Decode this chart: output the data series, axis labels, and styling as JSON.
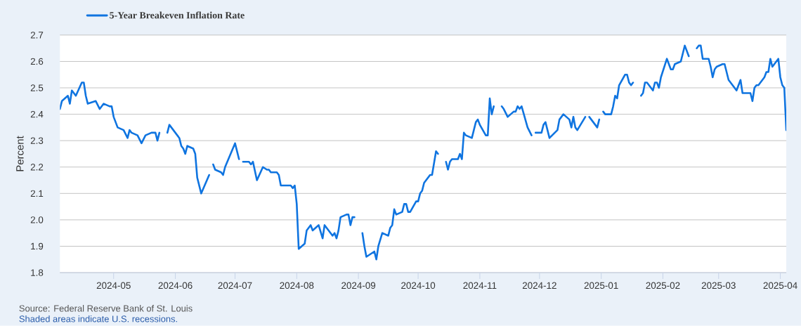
{
  "chart_data": {
    "type": "line",
    "ylabel": "Percent",
    "annotations": [
      "Source: Federal Reserve Bank of St. Louis",
      "Shaded areas indicate U.S. recessions."
    ],
    "x": [
      "2024-04-04",
      "2024-04-05",
      "2024-04-08",
      "2024-04-09",
      "2024-04-10",
      "2024-04-12",
      "2024-04-15",
      "2024-04-16",
      "2024-04-17",
      "2024-04-18",
      "2024-04-22",
      "2024-04-24",
      "2024-04-26",
      "2024-04-29",
      "2024-04-30",
      "2024-05-01",
      "2024-05-03",
      "2024-05-06",
      "2024-05-08",
      "2024-05-09",
      "2024-05-10",
      "2024-05-13",
      "2024-05-15",
      "2024-05-17",
      "2024-05-20",
      "2024-05-22",
      "2024-05-23",
      "2024-05-24",
      "2024-05-27",
      "2024-05-28",
      "2024-05-29",
      "2024-06-03",
      "2024-06-04",
      "2024-06-05",
      "2024-06-06",
      "2024-06-07",
      "2024-06-10",
      "2024-06-11",
      "2024-06-12",
      "2024-06-14",
      "2024-06-18",
      "2024-06-19",
      "2024-06-20",
      "2024-06-21",
      "2024-06-24",
      "2024-06-25",
      "2024-06-26",
      "2024-07-01",
      "2024-07-03",
      "2024-07-04",
      "2024-07-05",
      "2024-07-08",
      "2024-07-09",
      "2024-07-10",
      "2024-07-12",
      "2024-07-15",
      "2024-07-17",
      "2024-07-18",
      "2024-07-19",
      "2024-07-22",
      "2024-07-23",
      "2024-07-24",
      "2024-07-29",
      "2024-07-30",
      "2024-07-31",
      "2024-08-01",
      "2024-08-02",
      "2024-08-05",
      "2024-08-06",
      "2024-08-08",
      "2024-08-09",
      "2024-08-12",
      "2024-08-14",
      "2024-08-15",
      "2024-08-16",
      "2024-08-19",
      "2024-08-20",
      "2024-08-21",
      "2024-08-22",
      "2024-08-23",
      "2024-08-26",
      "2024-08-27",
      "2024-08-28",
      "2024-08-29",
      "2024-08-30",
      "2024-09-02",
      "2024-09-03",
      "2024-09-04",
      "2024-09-05",
      "2024-09-09",
      "2024-09-10",
      "2024-09-11",
      "2024-09-13",
      "2024-09-16",
      "2024-09-17",
      "2024-09-18",
      "2024-09-19",
      "2024-09-20",
      "2024-09-23",
      "2024-09-24",
      "2024-09-25",
      "2024-09-26",
      "2024-09-27",
      "2024-09-30",
      "2024-10-01",
      "2024-10-02",
      "2024-10-03",
      "2024-10-04",
      "2024-10-07",
      "2024-10-08",
      "2024-10-10",
      "2024-10-11",
      "2024-10-14",
      "2024-10-15",
      "2024-10-16",
      "2024-10-17",
      "2024-10-18",
      "2024-10-21",
      "2024-10-22",
      "2024-10-23",
      "2024-10-24",
      "2024-10-25",
      "2024-10-28",
      "2024-10-29",
      "2024-10-30",
      "2024-10-31",
      "2024-11-01",
      "2024-11-04",
      "2024-11-05",
      "2024-11-06",
      "2024-11-07",
      "2024-11-08",
      "2024-11-11",
      "2024-11-12",
      "2024-11-13",
      "2024-11-15",
      "2024-11-18",
      "2024-11-19",
      "2024-11-20",
      "2024-11-21",
      "2024-11-22",
      "2024-11-25",
      "2024-11-27",
      "2024-11-28",
      "2024-11-29",
      "2024-12-02",
      "2024-12-03",
      "2024-12-04",
      "2024-12-06",
      "2024-12-10",
      "2024-12-11",
      "2024-12-13",
      "2024-12-16",
      "2024-12-17",
      "2024-12-18",
      "2024-12-19",
      "2024-12-20",
      "2024-12-24",
      "2024-12-25",
      "2024-12-26",
      "2024-12-30",
      "2024-12-31",
      "2025-01-01",
      "2025-01-02",
      "2025-01-03",
      "2025-01-06",
      "2025-01-07",
      "2025-01-08",
      "2025-01-09",
      "2025-01-10",
      "2025-01-13",
      "2025-01-14",
      "2025-01-15",
      "2025-01-16",
      "2025-01-17",
      "2025-01-20",
      "2025-01-21",
      "2025-01-22",
      "2025-01-23",
      "2025-01-24",
      "2025-01-27",
      "2025-01-28",
      "2025-01-29",
      "2025-01-30",
      "2025-01-31",
      "2025-02-03",
      "2025-02-05",
      "2025-02-06",
      "2025-02-07",
      "2025-02-10",
      "2025-02-11",
      "2025-02-12",
      "2025-02-14",
      "2025-02-17",
      "2025-02-18",
      "2025-02-19",
      "2025-02-20",
      "2025-02-21",
      "2025-02-24",
      "2025-02-25",
      "2025-02-26",
      "2025-02-27",
      "2025-02-28",
      "2025-03-03",
      "2025-03-04",
      "2025-03-06",
      "2025-03-10",
      "2025-03-11",
      "2025-03-12",
      "2025-03-13",
      "2025-03-17",
      "2025-03-18",
      "2025-03-19",
      "2025-03-20",
      "2025-03-21",
      "2025-03-24",
      "2025-03-25",
      "2025-03-26",
      "2025-03-27",
      "2025-03-28",
      "2025-03-31",
      "2025-04-01",
      "2025-04-02",
      "2025-04-03",
      "2025-04-04"
    ],
    "series": [
      {
        "name": "5-Year Breakeven Inflation Rate",
        "color": "#0f74e0",
        "values": [
          2.42,
          2.45,
          2.47,
          2.44,
          2.49,
          2.47,
          2.52,
          2.52,
          2.47,
          2.44,
          2.45,
          2.42,
          2.44,
          2.43,
          2.43,
          2.39,
          2.35,
          2.34,
          2.31,
          2.34,
          2.33,
          2.32,
          2.29,
          2.32,
          2.33,
          2.33,
          2.3,
          2.33,
          null,
          2.33,
          2.36,
          2.31,
          2.28,
          2.27,
          2.25,
          2.28,
          2.27,
          2.25,
          2.16,
          2.1,
          2.17,
          null,
          2.21,
          2.19,
          2.18,
          2.17,
          2.2,
          2.29,
          2.23,
          null,
          2.22,
          2.22,
          2.21,
          2.22,
          2.15,
          2.2,
          2.19,
          2.19,
          2.18,
          2.18,
          2.17,
          2.13,
          2.13,
          2.12,
          2.13,
          2.06,
          1.89,
          1.91,
          1.96,
          1.98,
          1.96,
          1.98,
          1.93,
          1.98,
          1.97,
          1.94,
          1.95,
          1.93,
          1.96,
          2.01,
          2.02,
          2.02,
          1.98,
          2.01,
          2.01,
          null,
          1.95,
          1.9,
          1.86,
          1.88,
          1.85,
          1.9,
          1.95,
          1.94,
          1.97,
          1.98,
          2.04,
          2.02,
          2.03,
          2.06,
          2.06,
          2.03,
          2.03,
          2.07,
          2.07,
          2.1,
          2.11,
          2.14,
          2.17,
          2.17,
          2.26,
          2.25,
          null,
          2.22,
          2.19,
          2.22,
          2.23,
          2.23,
          2.25,
          2.23,
          2.33,
          2.32,
          2.31,
          2.34,
          2.37,
          2.38,
          2.36,
          2.32,
          2.32,
          2.46,
          2.4,
          2.43,
          null,
          2.43,
          2.42,
          2.39,
          2.41,
          2.41,
          2.43,
          2.42,
          2.43,
          2.35,
          2.32,
          null,
          2.33,
          2.33,
          2.36,
          2.37,
          2.31,
          2.34,
          2.38,
          2.4,
          2.38,
          2.35,
          2.39,
          2.35,
          2.34,
          2.39,
          null,
          2.39,
          2.35,
          2.38,
          null,
          2.41,
          2.4,
          2.4,
          2.43,
          2.47,
          2.46,
          2.51,
          2.55,
          2.55,
          2.52,
          2.51,
          2.52,
          null,
          2.47,
          2.48,
          2.52,
          2.52,
          2.49,
          2.52,
          2.52,
          2.5,
          2.54,
          2.61,
          2.57,
          2.57,
          2.59,
          2.6,
          2.63,
          2.66,
          2.62,
          null,
          2.65,
          2.66,
          2.66,
          2.61,
          2.61,
          2.58,
          2.54,
          2.57,
          2.58,
          2.59,
          2.59,
          2.53,
          2.49,
          2.51,
          2.53,
          2.48,
          2.48,
          2.45,
          2.5,
          2.51,
          2.51,
          2.54,
          2.56,
          2.56,
          2.61,
          2.58,
          2.61,
          2.54,
          2.51,
          2.5,
          2.34
        ]
      }
    ],
    "xlim": [
      "2024-04-04",
      "2025-04-04"
    ],
    "ylim": [
      1.8,
      2.7
    ],
    "xticks": [
      {
        "value": "2024-05-01",
        "label": "2024-05"
      },
      {
        "value": "2024-06-01",
        "label": "2024-06"
      },
      {
        "value": "2024-07-01",
        "label": "2024-07"
      },
      {
        "value": "2024-08-01",
        "label": "2024-08"
      },
      {
        "value": "2024-09-01",
        "label": "2024-09"
      },
      {
        "value": "2024-10-01",
        "label": "2024-10"
      },
      {
        "value": "2024-11-01",
        "label": "2024-11"
      },
      {
        "value": "2024-12-01",
        "label": "2024-12"
      },
      {
        "value": "2025-01-01",
        "label": "2025-01"
      },
      {
        "value": "2025-02-01",
        "label": "2025-02"
      },
      {
        "value": "2025-03-01",
        "label": "2025-03"
      },
      {
        "value": "2025-04-01",
        "label": "2025-04"
      }
    ],
    "yticks": [
      1.8,
      1.9,
      {
        "value": 2,
        "label": "2.0"
      },
      2.1,
      2.2,
      2.3,
      2.4,
      2.5,
      2.6,
      2.7
    ],
    "grid": "y",
    "legend": "top left"
  }
}
